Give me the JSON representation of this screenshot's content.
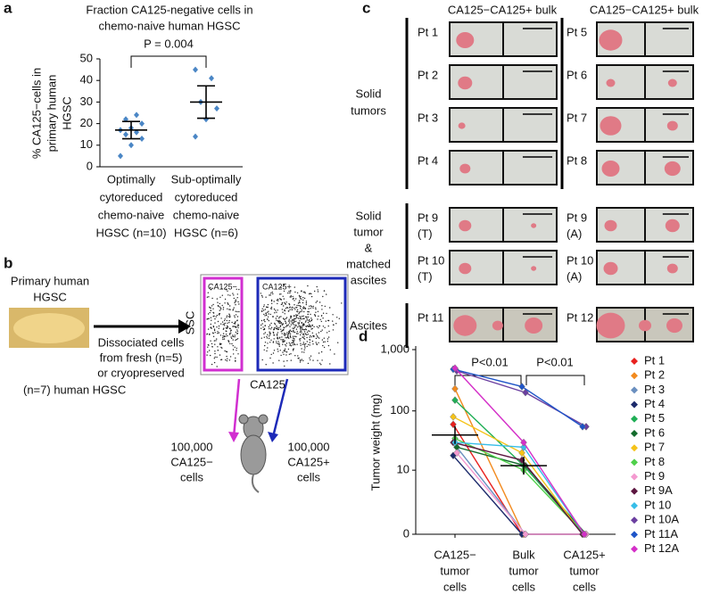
{
  "panel_letters": [
    "a",
    "b",
    "c",
    "d"
  ],
  "chart_data": [
    {
      "type": "dot",
      "title": [
        "Fraction CA125-negative cells in",
        "chemo-naive human HGSC"
      ],
      "ylabel": [
        "% CA125−cells in",
        "primary human",
        "HGSC"
      ],
      "categories": [
        [
          "Optimally",
          "cytoreduced",
          "chemo-naive",
          "HGSC (n=10)"
        ],
        [
          "Sub-optimally",
          "cytoreduced",
          "chemo-naive",
          "HGSC (n=6)"
        ]
      ],
      "values": [
        [
          5,
          10,
          13,
          15,
          16,
          17,
          18,
          20,
          22,
          24
        ],
        [
          14,
          22,
          27,
          30,
          41,
          45
        ]
      ],
      "means": [
        17,
        30
      ],
      "sd": [
        4,
        7.5
      ],
      "color": "#4a86c5",
      "annotation": "P = 0.004",
      "ylim": [
        0,
        50
      ],
      "yticks": [
        0,
        10,
        20,
        30,
        40,
        50
      ]
    },
    {
      "type": "line",
      "ylabel": "Tumor weight (mg)",
      "yscale": "symlog",
      "categories": [
        [
          "CA125−",
          "tumor",
          "cells"
        ],
        [
          "Bulk",
          "tumor",
          "cells"
        ],
        [
          "CA125+",
          "tumor",
          "cells"
        ]
      ],
      "annotations": [
        "P<0.01",
        "P<0.01"
      ],
      "means": [
        40,
        12,
        null
      ],
      "ylim": [
        0,
        1000
      ],
      "yticks": [
        0,
        10,
        100,
        {
          "value": 1000,
          "label": "1,000"
        }
      ],
      "series": [
        {
          "name": "Pt 1",
          "color": "#e8211f",
          "values": [
            60,
            0,
            0
          ]
        },
        {
          "name": "Pt 2",
          "color": "#f28a1e",
          "values": [
            230,
            0,
            0
          ]
        },
        {
          "name": "Pt 3",
          "color": "#6a8fbf",
          "values": [
            25,
            0,
            0
          ]
        },
        {
          "name": "Pt 4",
          "color": "#1c2a6b",
          "values": [
            18,
            0,
            0
          ]
        },
        {
          "name": "Pt 5",
          "color": "#1fae55",
          "values": [
            150,
            12,
            0
          ]
        },
        {
          "name": "Pt 6",
          "color": "#136b2c",
          "values": [
            25,
            12,
            0
          ]
        },
        {
          "name": "Pt 7",
          "color": "#f5c319",
          "values": [
            80,
            20,
            0
          ]
        },
        {
          "name": "Pt 8",
          "color": "#4fd04a",
          "values": [
            35,
            10,
            0
          ]
        },
        {
          "name": "Pt 9",
          "color": "#f49ad0",
          "values": [
            20,
            0,
            0
          ]
        },
        {
          "name": "Pt 9A",
          "color": "#5c1640",
          "values": [
            30,
            15,
            0
          ]
        },
        {
          "name": "Pt 10",
          "color": "#37bde8",
          "values": [
            30,
            25,
            0
          ]
        },
        {
          "name": "Pt 10A",
          "color": "#6b3fa0",
          "values": [
            450,
            200,
            55
          ]
        },
        {
          "name": "Pt 11A",
          "color": "#1f55c8",
          "values": [
            480,
            250,
            55
          ]
        },
        {
          "name": "Pt 12A",
          "color": "#d42fc8",
          "values": [
            500,
            30,
            0
          ]
        }
      ]
    }
  ],
  "panel_b": {
    "primary": [
      "Primary human",
      "HGSC"
    ],
    "dissociated": [
      "Dissociated cells",
      "from fresh (n=5)",
      "or cryopreserved"
    ],
    "cryo_n": "(n=7)  human HGSC",
    "ssc": "SSC",
    "xaxis": "CA125",
    "gate_neg": "CA125−",
    "gate_pos": "CA125+",
    "left": [
      "100,000",
      "CA125−",
      "cells"
    ],
    "right": [
      "100,000",
      "CA125+",
      "cells"
    ]
  },
  "panel_c": {
    "headers": [
      "CA125−CA125+ bulk",
      "CA125−CA125+ bulk"
    ],
    "groups": [
      [
        "Solid",
        "tumors"
      ],
      [
        "Solid",
        "tumor",
        "&",
        "matched",
        "ascites"
      ],
      [
        "Ascites"
      ]
    ],
    "columns": [
      [
        [
          "Pt 1"
        ],
        [
          "Pt 2"
        ],
        [
          "Pt 3"
        ],
        [
          "Pt 4"
        ],
        [
          "Pt 9",
          "(T)"
        ],
        [
          "Pt 10",
          "(T)"
        ],
        [
          "Pt 11"
        ]
      ],
      [
        [
          "Pt 5"
        ],
        [
          "Pt 6"
        ],
        [
          "Pt 7"
        ],
        [
          "Pt 8"
        ],
        [
          "Pt 9",
          "(A)"
        ],
        [
          "Pt 10",
          "(A)"
        ],
        [
          "Pt 12"
        ]
      ]
    ]
  }
}
